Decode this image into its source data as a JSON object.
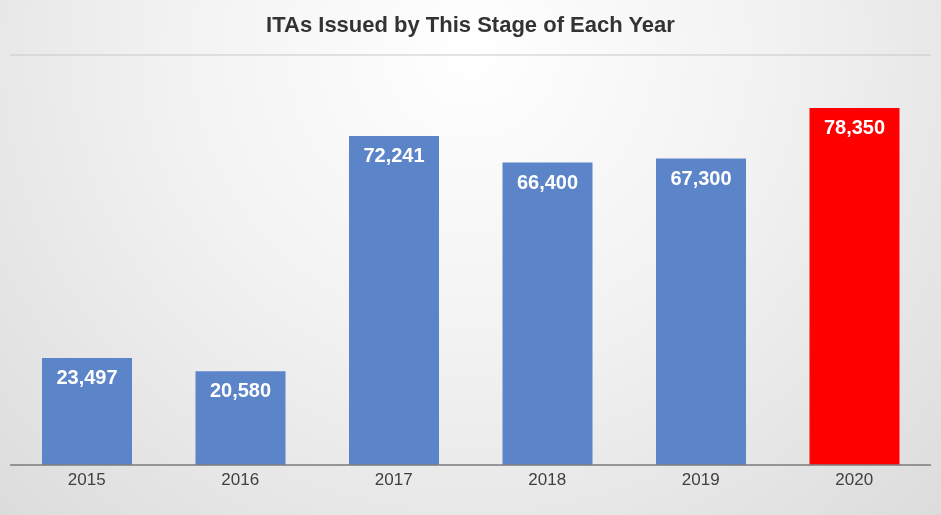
{
  "chart_data": {
    "type": "bar",
    "title": "ITAs Issued by This Stage of Each Year",
    "categories": [
      "2015",
      "2016",
      "2017",
      "2018",
      "2019",
      "2020"
    ],
    "values": [
      23497,
      20580,
      72241,
      66400,
      67300,
      78350
    ],
    "value_labels": [
      "23,497",
      "20,580",
      "72,241",
      "66,400",
      "67,300",
      "78,350"
    ],
    "colors": [
      "#5b84c9",
      "#5b84c9",
      "#5b84c9",
      "#5b84c9",
      "#5b84c9",
      "#ff0000"
    ],
    "ylim": [
      0,
      90000
    ],
    "yticks": [
      0,
      10000,
      20000,
      30000,
      40000,
      50000,
      60000,
      70000,
      80000,
      90000
    ],
    "grid": true,
    "data_labels": true,
    "tick_labels": "x"
  }
}
